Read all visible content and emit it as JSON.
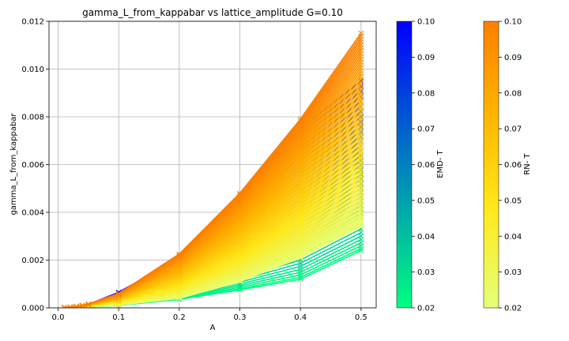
{
  "chart_data": {
    "type": "line",
    "title": "gamma_L_from_kappabar vs lattice_amplitude G=0.10",
    "xlabel": "A",
    "ylabel": "gamma_L_from_kappabar",
    "xlim": [
      -0.015,
      0.525
    ],
    "ylim": [
      0,
      0.012
    ],
    "x_ticks": [
      0.0,
      0.1,
      0.2,
      0.3,
      0.4,
      0.5
    ],
    "x_tick_labels": [
      "0.0",
      "0.1",
      "0.2",
      "0.3",
      "0.4",
      "0.5"
    ],
    "y_ticks": [
      0.0,
      0.002,
      0.004,
      0.006,
      0.008,
      0.01,
      0.012
    ],
    "y_tick_labels": [
      "0.000",
      "0.002",
      "0.004",
      "0.006",
      "0.008",
      "0.010",
      "0.012"
    ],
    "grid": true,
    "x": [
      0.01,
      0.02,
      0.03,
      0.04,
      0.05,
      0.1,
      0.2,
      0.3,
      0.4,
      0.5
    ],
    "marker": "x",
    "series_groups": [
      {
        "colorbar": "EMD- T",
        "colormap": "winter_r",
        "T_range": [
          0.02,
          0.1
        ],
        "base_values": [
          1.2e-05,
          3e-05,
          6e-05,
          0.0001,
          0.00015,
          0.00065,
          0.0021,
          0.0046,
          0.0075,
          0.0095
        ],
        "min_values": [
          3e-06,
          8e-06,
          1.5e-05,
          2.5e-05,
          4e-05,
          0.0001,
          0.00035,
          0.00075,
          0.0012,
          0.0024
        ],
        "max_T_values": [
          1.2e-05,
          3e-05,
          6e-05,
          0.0001,
          0.00015,
          0.00065,
          0.0021,
          0.0046,
          0.0075,
          0.0095
        ],
        "n_series": 40
      },
      {
        "colorbar": "RN- T",
        "colormap": "Wistia",
        "T_range": [
          0.02,
          0.1
        ],
        "min_values": [
          4e-06,
          1e-05,
          2e-05,
          3e-05,
          5e-05,
          0.00012,
          0.0004,
          0.0011,
          0.0021,
          0.0034
        ],
        "max_T_values": [
          1.4e-05,
          3e-05,
          6e-05,
          0.0001,
          0.00016,
          0.0006,
          0.00225,
          0.0048,
          0.0079,
          0.0115
        ],
        "n_series": 80
      }
    ],
    "colorbars": [
      {
        "label": "EMD- T",
        "ticks": [
          "0.02",
          "0.03",
          "0.04",
          "0.05",
          "0.06",
          "0.07",
          "0.08",
          "0.09",
          "0.10"
        ],
        "color_low": "#00ff80",
        "color_high": "#0000ff"
      },
      {
        "label": "RN- T",
        "ticks": [
          "0.02",
          "0.03",
          "0.04",
          "0.05",
          "0.06",
          "0.07",
          "0.08",
          "0.09",
          "0.10"
        ],
        "color_low": "#e4ff7a",
        "color_high": "#fc7f00"
      }
    ]
  }
}
